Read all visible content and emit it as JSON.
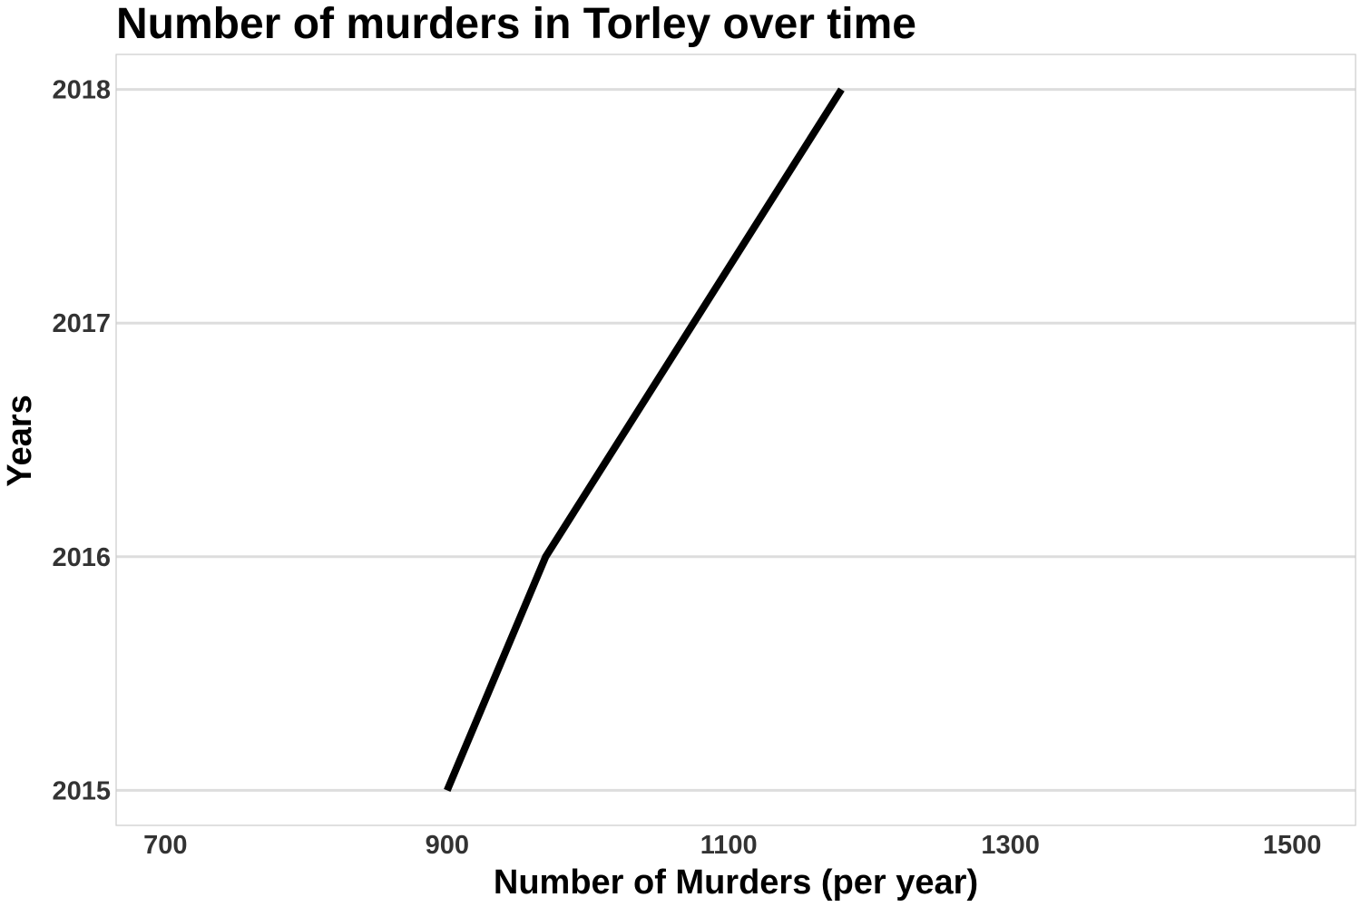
{
  "chart_data": {
    "type": "line",
    "title": "Number of murders in Torley over time",
    "xlabel": "Number of Murders (per year)",
    "ylabel": "Years",
    "xlim": [
      665,
      1545
    ],
    "ylim": [
      2014.85,
      2018.15
    ],
    "x_ticks": [
      "700",
      "900",
      "1100",
      "1300",
      "1500"
    ],
    "y_ticks": [
      "2015",
      "2016",
      "2017",
      "2018"
    ],
    "grid": {
      "horizontal": true,
      "vertical": false
    },
    "series": [
      {
        "points": [
          {
            "x": 900,
            "y": 2015
          },
          {
            "x": 970,
            "y": 2016
          },
          {
            "x": 1075,
            "y": 2017
          },
          {
            "x": 1180,
            "y": 2018
          }
        ]
      }
    ],
    "colors": {
      "line": "#000000",
      "grid": "#dddddd",
      "panel_border": "#cccccc",
      "tick_text": "#333333"
    }
  }
}
